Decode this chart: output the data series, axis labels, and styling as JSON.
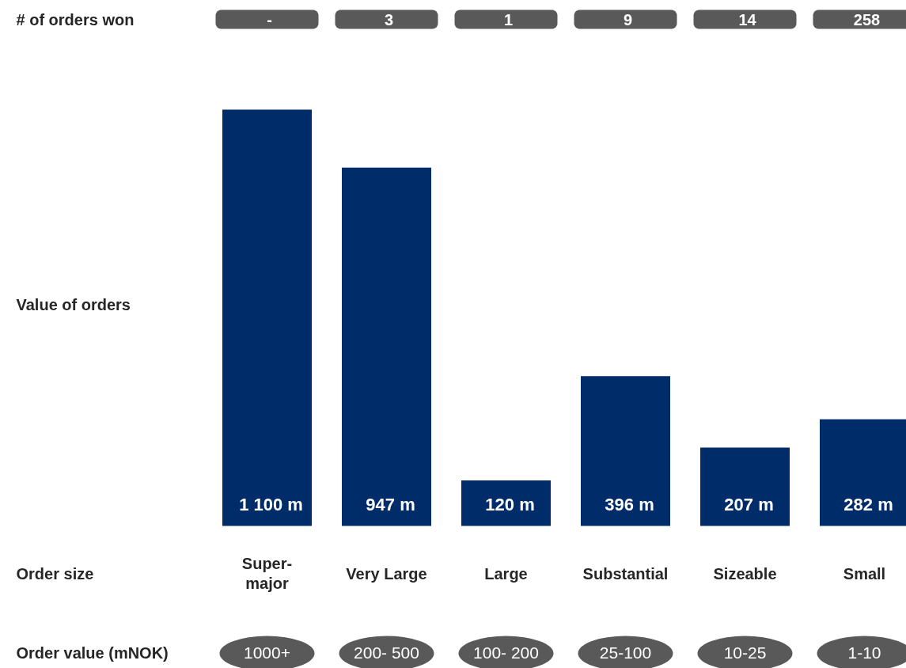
{
  "chart_data": {
    "type": "bar",
    "categories": [
      "Super-major",
      "Very Large",
      "Large",
      "Substantial",
      "Sizeable",
      "Small"
    ],
    "values": [
      1100,
      947,
      120,
      396,
      207,
      282
    ],
    "value_labels": [
      "1 100 m",
      "947 m",
      "120 m",
      "396 m",
      "207 m",
      "282 m"
    ],
    "color": "#002d6a",
    "ylabel": "Value of orders",
    "tick_labels": "x",
    "annotations": [
      "# of orders won",
      "-",
      "3",
      "1",
      "9",
      "14",
      "258",
      "Order size",
      "Order value (mNOK)",
      "1000+",
      "200- 500",
      "100- 200",
      "25-100",
      "10-25",
      "1-10"
    ]
  }
}
